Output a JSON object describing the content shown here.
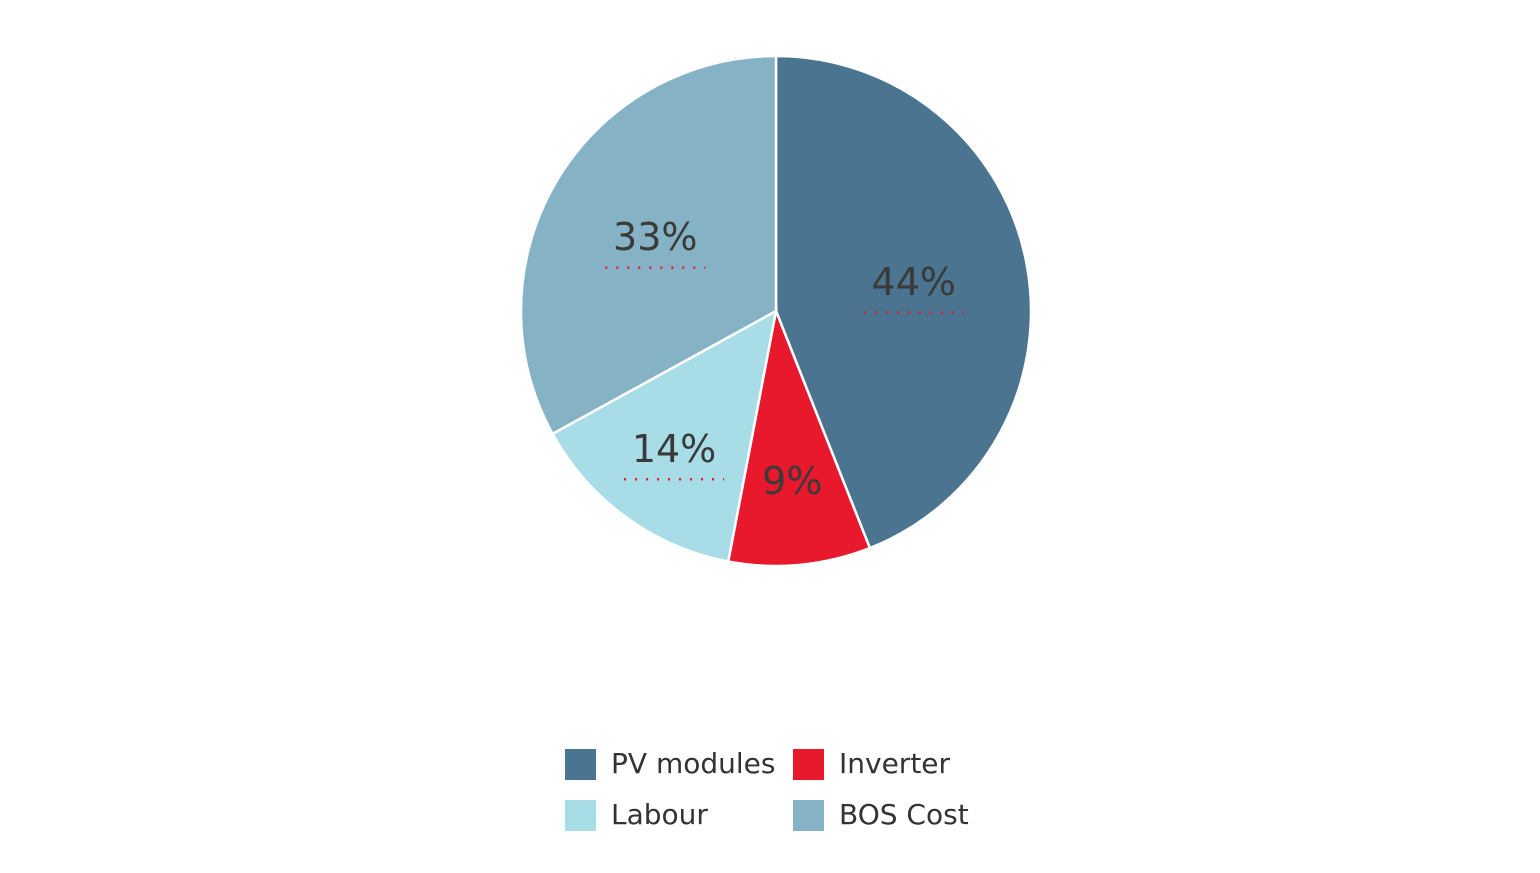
{
  "chart_data": {
    "type": "pie",
    "categories": [
      "PV modules",
      "Inverter",
      "Labour",
      "BOS Cost"
    ],
    "values": [
      44,
      9,
      14,
      33
    ],
    "value_labels": [
      "44%",
      "9%",
      "14%",
      "33%"
    ],
    "colors": [
      "#4b7490",
      "#e8192c",
      "#a8dce6",
      "#85b3c5"
    ],
    "legend": "bottom"
  }
}
